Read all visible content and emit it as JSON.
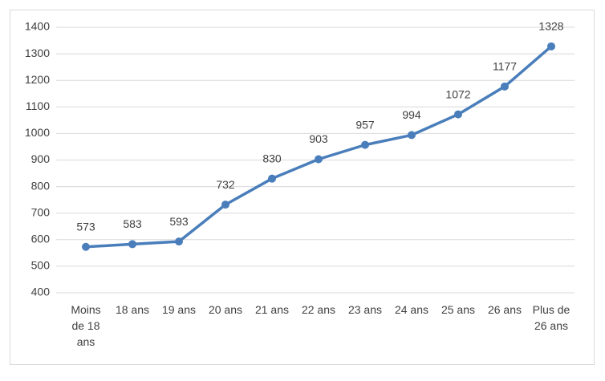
{
  "chart_data": {
    "type": "line",
    "categories": [
      "Moins de 18 ans",
      "18 ans",
      "19 ans",
      "20 ans",
      "21 ans",
      "22 ans",
      "23 ans",
      "24 ans",
      "25 ans",
      "26 ans",
      "Plus de 26 ans"
    ],
    "values": [
      573,
      583,
      593,
      732,
      830,
      903,
      957,
      994,
      1072,
      1177,
      1328
    ],
    "color": "#4a7ebb",
    "ylim": [
      400,
      1400
    ],
    "yticks": [
      400,
      500,
      600,
      700,
      800,
      900,
      1000,
      1100,
      1200,
      1300,
      1400
    ],
    "grid": true
  }
}
